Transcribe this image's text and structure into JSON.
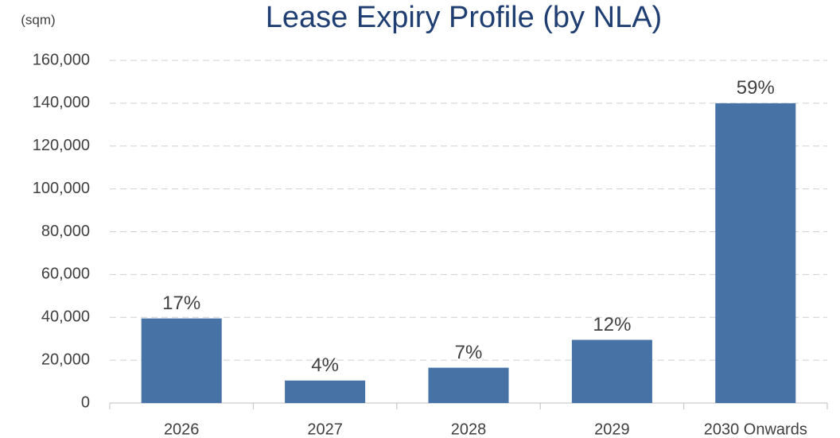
{
  "chart_data": {
    "type": "bar",
    "title": "Lease Expiry Profile (by NLA)",
    "y_axis_label": "(sqm)",
    "categories": [
      "2026",
      "2027",
      "2028",
      "2029",
      "2030 Onwards"
    ],
    "values": [
      39500,
      10500,
      16500,
      29500,
      140000
    ],
    "data_labels": [
      "17%",
      "4%",
      "7%",
      "12%",
      "59%"
    ],
    "color": "#4672a6",
    "ylim": [
      0,
      160000
    ],
    "yticks": [
      0,
      {
        "value": 20000,
        "label": "20,000"
      },
      {
        "value": 40000,
        "label": "40,000"
      },
      {
        "value": 60000,
        "label": "60,000"
      },
      {
        "value": 80000,
        "label": "80,000"
      },
      {
        "value": 100000,
        "label": "100,000"
      },
      {
        "value": 120000,
        "label": "120,000"
      },
      {
        "value": 140000,
        "label": "140,000"
      },
      {
        "value": 160000,
        "label": "160,000"
      }
    ],
    "grid": true
  }
}
